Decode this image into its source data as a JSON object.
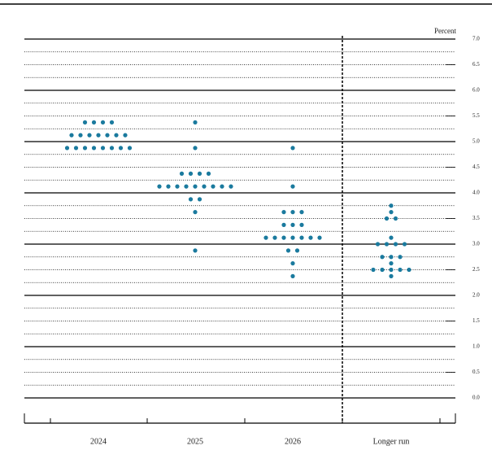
{
  "chart_data": {
    "type": "dot",
    "y_label": "Percent",
    "categories": [
      "2024",
      "2025",
      "2026",
      "Longer run"
    ],
    "values": [
      [
        5.375,
        5.375,
        5.375,
        5.375,
        5.125,
        5.125,
        5.125,
        5.125,
        5.125,
        5.125,
        5.125,
        4.875,
        4.875,
        4.875,
        4.875,
        4.875,
        4.875,
        4.875,
        4.875
      ],
      [
        5.375,
        4.875,
        4.375,
        4.375,
        4.375,
        4.375,
        4.125,
        4.125,
        4.125,
        4.125,
        4.125,
        4.125,
        4.125,
        4.125,
        4.125,
        3.875,
        3.875,
        3.625,
        2.875
      ],
      [
        4.875,
        4.125,
        3.625,
        3.625,
        3.625,
        3.375,
        3.375,
        3.375,
        3.125,
        3.125,
        3.125,
        3.125,
        3.125,
        3.125,
        3.125,
        2.875,
        2.875,
        2.625,
        2.375
      ],
      [
        3.75,
        3.625,
        3.5,
        3.5,
        3.125,
        3,
        3,
        3,
        3,
        2.75,
        2.75,
        2.75,
        2.625,
        2.5,
        2.5,
        2.5,
        2.5,
        2.5,
        2.375
      ]
    ],
    "color": "#1a7a9e",
    "ylim": [
      0,
      7
    ],
    "yticks": [
      {
        "value": 0,
        "label": "0.0"
      },
      {
        "value": 0.5,
        "label": "0.5"
      },
      {
        "value": 1,
        "label": "1.0"
      },
      {
        "value": 1.5,
        "label": "1.5"
      },
      {
        "value": 2,
        "label": "2.0"
      },
      {
        "value": 2.5,
        "label": "2.5"
      },
      {
        "value": 3,
        "label": "3.0"
      },
      {
        "value": 3.5,
        "label": "3.5"
      },
      {
        "value": 4,
        "label": "4.0"
      },
      {
        "value": 4.5,
        "label": "4.5"
      },
      {
        "value": 5,
        "label": "5.0"
      },
      {
        "value": 5.5,
        "label": "5.5"
      },
      {
        "value": 6,
        "label": "6.0"
      },
      {
        "value": 6.5,
        "label": "6.5"
      },
      {
        "value": 7,
        "label": "7.0"
      }
    ],
    "grid": true
  }
}
